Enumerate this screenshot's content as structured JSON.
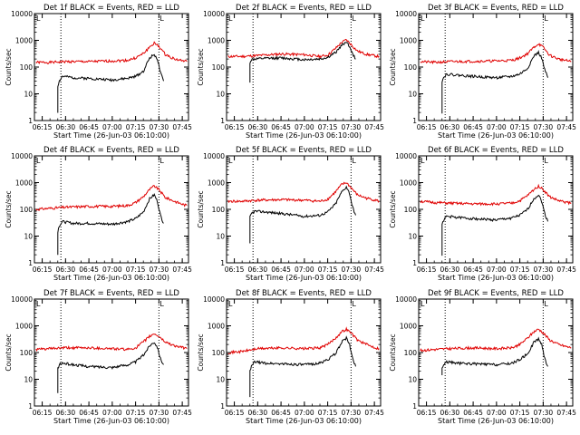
{
  "colors": {
    "events": "#000000",
    "lld": "#e00000",
    "axes": "#000000"
  },
  "common": {
    "xlabel": "Start Time (26-Jun-03 06:10:00)",
    "ylabel": "Counts/sec",
    "x_ticks": [
      "06:15",
      "06:30",
      "06:45",
      "07:00",
      "07:15",
      "07:30",
      "07:45"
    ],
    "y_ticks": [
      "1",
      "10",
      "100",
      "1000",
      "10000"
    ]
  },
  "chart_data": [
    {
      "type": "line",
      "title": "Det 1f BLACK = Events, RED = LLD",
      "corner_mark": "L",
      "xlabel": "Start Time (26-Jun-03 06:10:00)",
      "ylabel": "Counts/sec",
      "yscale": "log",
      "xlim": [
        "06:10",
        "07:49"
      ],
      "ylim": [
        1,
        10000
      ],
      "grid": false,
      "vlines": [
        "06:27",
        "07:30"
      ],
      "series": [
        {
          "x": [
            "06:11",
            "06:20",
            "06:30",
            "06:45",
            "07:00",
            "07:10",
            "07:15",
            "07:20",
            "07:24",
            "07:27",
            "07:30",
            "07:34",
            "07:40",
            "07:46",
            "07:48"
          ],
          "values": [
            150,
            150,
            160,
            160,
            170,
            180,
            220,
            320,
            560,
            780,
            600,
            300,
            200,
            170,
            160
          ]
        },
        {
          "x": [
            "06:25",
            "06:25",
            "06:26",
            "06:28",
            "06:35",
            "06:45",
            "07:00",
            "07:10",
            "07:15",
            "07:20",
            "07:24",
            "07:27",
            "07:29",
            "07:31",
            "07:33"
          ],
          "values": [
            2,
            20,
            30,
            45,
            40,
            38,
            33,
            38,
            45,
            70,
            220,
            300,
            200,
            60,
            30
          ]
        }
      ]
    },
    {
      "type": "line",
      "title": "Det 2f BLACK = Events, RED = LLD",
      "corner_mark": "L",
      "xlabel": "Start Time (26-Jun-03 06:10:00)",
      "ylabel": "Counts/sec",
      "yscale": "log",
      "xlim": [
        "06:10",
        "07:49"
      ],
      "ylim": [
        1,
        10000
      ],
      "grid": false,
      "vlines": [
        "06:27",
        "07:30"
      ],
      "series": [
        {
          "x": [
            "06:11",
            "06:20",
            "06:30",
            "06:45",
            "07:00",
            "07:10",
            "07:15",
            "07:20",
            "07:24",
            "07:27",
            "07:30",
            "07:34",
            "07:40",
            "07:46",
            "07:48"
          ],
          "values": [
            250,
            250,
            270,
            310,
            290,
            250,
            280,
            500,
            850,
            1050,
            700,
            400,
            300,
            260,
            250
          ]
        },
        {
          "x": [
            "06:25",
            "06:25",
            "06:26",
            "06:28",
            "06:35",
            "06:45",
            "07:00",
            "07:10",
            "07:15",
            "07:20",
            "07:24",
            "07:27",
            "07:29",
            "07:31",
            "07:33"
          ],
          "values": [
            25,
            150,
            190,
            200,
            210,
            220,
            190,
            200,
            230,
            350,
            650,
            900,
            600,
            300,
            200
          ]
        }
      ]
    },
    {
      "type": "line",
      "title": "Det 3f BLACK = Events, RED = LLD",
      "corner_mark": "L",
      "xlabel": "Start Time (26-Jun-03 06:10:00)",
      "ylabel": "Counts/sec",
      "yscale": "log",
      "xlim": [
        "06:10",
        "07:49"
      ],
      "ylim": [
        1,
        10000
      ],
      "grid": false,
      "vlines": [
        "06:27",
        "07:30"
      ],
      "series": [
        {
          "x": [
            "06:11",
            "06:20",
            "06:30",
            "06:45",
            "07:00",
            "07:10",
            "07:15",
            "07:20",
            "07:24",
            "07:27",
            "07:30",
            "07:34",
            "07:40",
            "07:46",
            "07:48"
          ],
          "values": [
            160,
            150,
            160,
            165,
            170,
            180,
            220,
            320,
            550,
            750,
            550,
            280,
            200,
            170,
            160
          ]
        },
        {
          "x": [
            "06:25",
            "06:25",
            "06:26",
            "06:28",
            "06:35",
            "06:45",
            "07:00",
            "07:10",
            "07:15",
            "07:20",
            "07:24",
            "07:27",
            "07:29",
            "07:31",
            "07:33"
          ],
          "values": [
            2,
            30,
            40,
            55,
            50,
            45,
            40,
            45,
            55,
            90,
            260,
            350,
            220,
            80,
            40
          ]
        }
      ]
    },
    {
      "type": "line",
      "title": "Det 4f BLACK = Events, RED = LLD",
      "corner_mark": "L",
      "xlabel": "Start Time (26-Jun-03 06:10:00)",
      "ylabel": "Counts/sec",
      "yscale": "log",
      "xlim": [
        "06:10",
        "07:49"
      ],
      "ylim": [
        1,
        10000
      ],
      "grid": false,
      "vlines": [
        "06:27",
        "07:30"
      ],
      "series": [
        {
          "x": [
            "06:11",
            "06:20",
            "06:30",
            "06:45",
            "07:00",
            "07:10",
            "07:15",
            "07:20",
            "07:24",
            "07:27",
            "07:30",
            "07:34",
            "07:40",
            "07:46",
            "07:48"
          ],
          "values": [
            100,
            110,
            120,
            130,
            130,
            140,
            180,
            300,
            550,
            750,
            550,
            280,
            200,
            150,
            140
          ]
        },
        {
          "x": [
            "06:25",
            "06:25",
            "06:26",
            "06:28",
            "06:35",
            "06:45",
            "07:00",
            "07:10",
            "07:15",
            "07:20",
            "07:24",
            "07:27",
            "07:29",
            "07:31",
            "07:33"
          ],
          "values": [
            2,
            15,
            25,
            35,
            30,
            30,
            28,
            35,
            45,
            80,
            250,
            350,
            200,
            60,
            30
          ]
        }
      ]
    },
    {
      "type": "line",
      "title": "Det 5f BLACK = Events, RED = LLD",
      "corner_mark": "L",
      "xlabel": "Start Time (26-Jun-03 06:10:00)",
      "ylabel": "Counts/sec",
      "yscale": "log",
      "xlim": [
        "06:10",
        "07:49"
      ],
      "ylim": [
        1,
        10000
      ],
      "grid": false,
      "vlines": [
        "06:27",
        "07:30"
      ],
      "series": [
        {
          "x": [
            "06:11",
            "06:20",
            "06:30",
            "06:45",
            "07:00",
            "07:10",
            "07:15",
            "07:20",
            "07:24",
            "07:27",
            "07:30",
            "07:34",
            "07:40",
            "07:46",
            "07:48"
          ],
          "values": [
            200,
            200,
            220,
            230,
            220,
            200,
            240,
            450,
            850,
            1000,
            650,
            350,
            260,
            220,
            200
          ]
        },
        {
          "x": [
            "06:25",
            "06:25",
            "06:26",
            "06:28",
            "06:35",
            "06:45",
            "07:00",
            "07:10",
            "07:15",
            "07:20",
            "07:24",
            "07:27",
            "07:29",
            "07:31",
            "07:33"
          ],
          "values": [
            5,
            50,
            70,
            85,
            80,
            70,
            55,
            60,
            80,
            160,
            450,
            700,
            400,
            120,
            60
          ]
        }
      ]
    },
    {
      "type": "line",
      "title": "Det 6f BLACK = Events, RED = LLD",
      "corner_mark": "L",
      "xlabel": "Start Time (26-Jun-03 06:10:00)",
      "ylabel": "Counts/sec",
      "yscale": "log",
      "xlim": [
        "06:10",
        "07:49"
      ],
      "ylim": [
        1,
        10000
      ],
      "grid": false,
      "vlines": [
        "06:27",
        "07:30"
      ],
      "series": [
        {
          "x": [
            "06:11",
            "06:20",
            "06:30",
            "06:45",
            "07:00",
            "07:10",
            "07:15",
            "07:20",
            "07:24",
            "07:27",
            "07:30",
            "07:34",
            "07:40",
            "07:46",
            "07:48"
          ],
          "values": [
            200,
            180,
            170,
            160,
            160,
            170,
            210,
            330,
            550,
            750,
            550,
            300,
            210,
            180,
            170
          ]
        },
        {
          "x": [
            "06:25",
            "06:25",
            "06:26",
            "06:28",
            "06:35",
            "06:45",
            "07:00",
            "07:10",
            "07:15",
            "07:20",
            "07:24",
            "07:27",
            "07:29",
            "07:31",
            "07:33"
          ],
          "values": [
            2,
            25,
            40,
            55,
            50,
            45,
            40,
            48,
            60,
            100,
            250,
            350,
            200,
            70,
            35
          ]
        }
      ]
    },
    {
      "type": "line",
      "title": "Det 7f BLACK = Events, RED = LLD",
      "corner_mark": "L",
      "xlabel": "Start Time (26-Jun-03 06:10:00)",
      "ylabel": "Counts/sec",
      "yscale": "log",
      "xlim": [
        "06:10",
        "07:49"
      ],
      "ylim": [
        1,
        10000
      ],
      "grid": false,
      "vlines": [
        "06:27",
        "07:30"
      ],
      "series": [
        {
          "x": [
            "06:11",
            "06:20",
            "06:30",
            "06:45",
            "07:00",
            "07:10",
            "07:15",
            "07:20",
            "07:24",
            "07:27",
            "07:30",
            "07:34",
            "07:40",
            "07:46",
            "07:48"
          ],
          "values": [
            130,
            140,
            150,
            150,
            140,
            130,
            150,
            250,
            400,
            500,
            400,
            250,
            180,
            150,
            140
          ]
        },
        {
          "x": [
            "06:25",
            "06:25",
            "06:26",
            "06:28",
            "06:35",
            "06:45",
            "07:00",
            "07:10",
            "07:15",
            "07:20",
            "07:24",
            "07:27",
            "07:29",
            "07:31",
            "07:33"
          ],
          "values": [
            3,
            25,
            35,
            40,
            35,
            30,
            28,
            35,
            45,
            80,
            180,
            250,
            160,
            60,
            35
          ]
        }
      ]
    },
    {
      "type": "line",
      "title": "Det 8f BLACK = Events, RED = LLD",
      "corner_mark": "L",
      "xlabel": "Start Time (26-Jun-03 06:10:00)",
      "ylabel": "Counts/sec",
      "yscale": "log",
      "xlim": [
        "06:10",
        "07:49"
      ],
      "ylim": [
        1,
        10000
      ],
      "grid": false,
      "vlines": [
        "06:27",
        "07:30"
      ],
      "series": [
        {
          "x": [
            "06:11",
            "06:20",
            "06:30",
            "06:45",
            "07:00",
            "07:10",
            "07:15",
            "07:20",
            "07:24",
            "07:27",
            "07:30",
            "07:34",
            "07:40",
            "07:46",
            "07:48"
          ],
          "values": [
            100,
            110,
            140,
            150,
            140,
            150,
            200,
            350,
            600,
            750,
            550,
            300,
            200,
            150,
            140
          ]
        },
        {
          "x": [
            "06:25",
            "06:25",
            "06:26",
            "06:28",
            "06:35",
            "06:45",
            "07:00",
            "07:10",
            "07:15",
            "07:20",
            "07:24",
            "07:27",
            "07:29",
            "07:31",
            "07:33"
          ],
          "values": [
            2,
            20,
            30,
            45,
            40,
            38,
            35,
            40,
            55,
            90,
            250,
            350,
            200,
            60,
            30
          ]
        }
      ]
    },
    {
      "type": "line",
      "title": "Det 9f BLACK = Events, RED = LLD",
      "corner_mark": "L",
      "xlabel": "Start Time (26-Jun-03 06:10:00)",
      "ylabel": "Counts/sec",
      "yscale": "log",
      "xlim": [
        "06:10",
        "07:49"
      ],
      "ylim": [
        1,
        10000
      ],
      "grid": false,
      "vlines": [
        "06:27",
        "07:30"
      ],
      "series": [
        {
          "x": [
            "06:11",
            "06:20",
            "06:30",
            "06:45",
            "07:00",
            "07:10",
            "07:15",
            "07:20",
            "07:24",
            "07:27",
            "07:30",
            "07:34",
            "07:40",
            "07:46",
            "07:48"
          ],
          "values": [
            120,
            130,
            140,
            150,
            140,
            150,
            200,
            350,
            600,
            750,
            550,
            300,
            200,
            160,
            150
          ]
        },
        {
          "x": [
            "06:25",
            "06:25",
            "06:26",
            "06:28",
            "06:35",
            "06:45",
            "07:00",
            "07:10",
            "07:15",
            "07:20",
            "07:24",
            "07:27",
            "07:29",
            "07:31",
            "07:33"
          ],
          "values": [
            15,
            25,
            35,
            45,
            40,
            38,
            35,
            40,
            55,
            90,
            240,
            330,
            200,
            60,
            30
          ]
        }
      ]
    }
  ]
}
